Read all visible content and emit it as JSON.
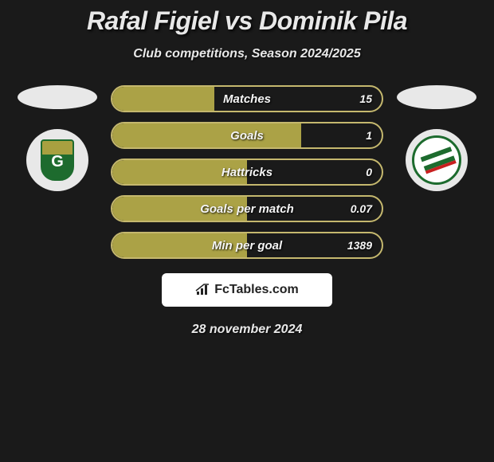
{
  "header": {
    "title": "Rafal Figiel vs Dominik Pila",
    "subtitle": "Club competitions, Season 2024/2025"
  },
  "comparison": {
    "bar_border_color": "#c5b86e",
    "bar_fill_color": "#aba246",
    "background_color": "#1a1a1a",
    "text_color": "#f5f5f5",
    "bars": [
      {
        "label": "Matches",
        "value": "15",
        "fill_pct": 38
      },
      {
        "label": "Goals",
        "value": "1",
        "fill_pct": 70
      },
      {
        "label": "Hattricks",
        "value": "0",
        "fill_pct": 50
      },
      {
        "label": "Goals per match",
        "value": "0.07",
        "fill_pct": 50
      },
      {
        "label": "Min per goal",
        "value": "1389",
        "fill_pct": 50
      }
    ]
  },
  "teams": {
    "left": {
      "name": "GKS Katowice",
      "badge_bg": "#e8e8e8",
      "primary": "#1d6b2e",
      "accent": "#a8a040",
      "letter": "G"
    },
    "right": {
      "name": "Lechia Gdansk",
      "badge_bg": "#e8e8e8",
      "primary": "#1d6b2e",
      "accent": "#c82020"
    }
  },
  "footer": {
    "logo_text": "FcTables.com",
    "date": "28 november 2024"
  }
}
